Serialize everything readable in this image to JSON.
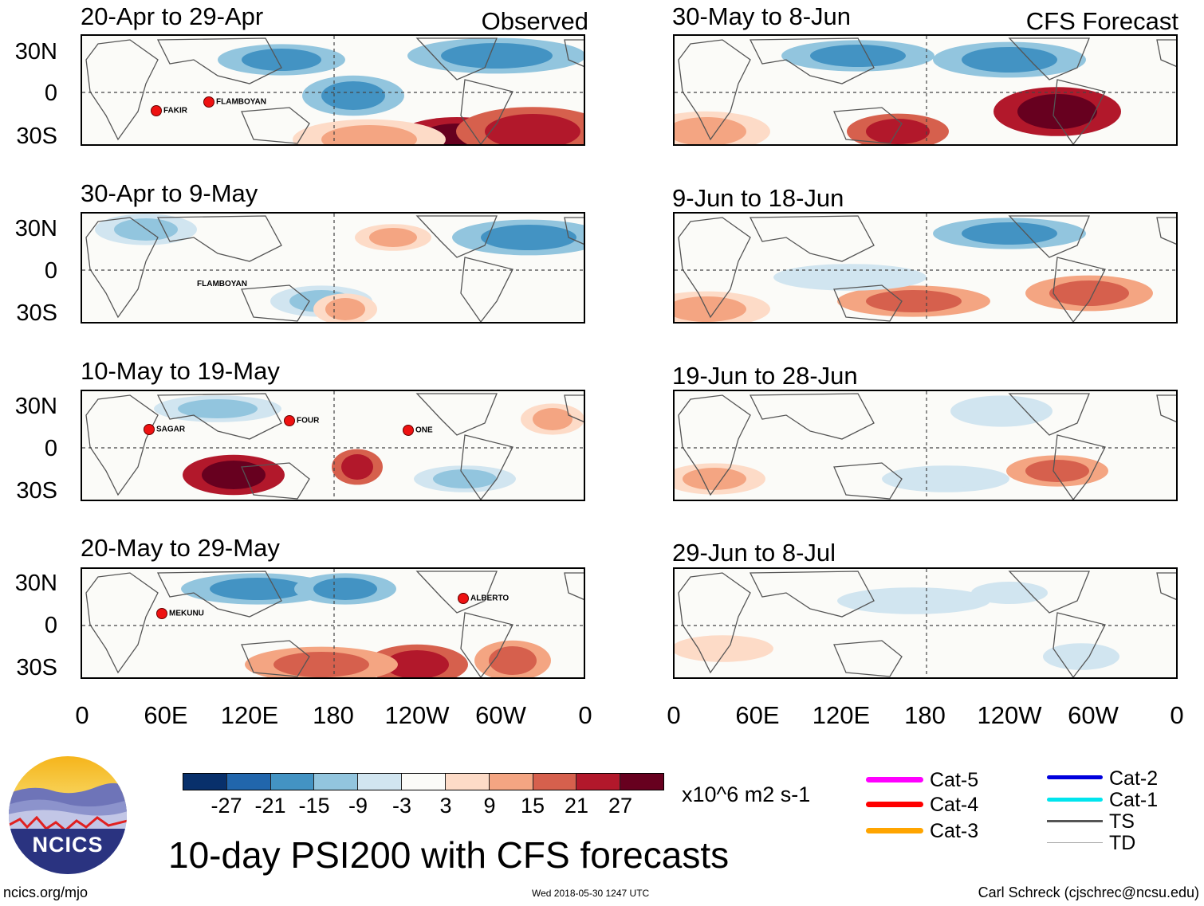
{
  "panels_left": [
    {
      "period": "20-Apr to 29-Apr",
      "tag": "Observed",
      "storms": [
        {
          "name": "FAKIR"
        },
        {
          "name": "FLAMBOYAN"
        }
      ]
    },
    {
      "period": "30-Apr to 9-May",
      "tag": "",
      "storms": [
        {
          "name": "FLAMBOYAN"
        }
      ]
    },
    {
      "period": "10-May to 19-May",
      "tag": "",
      "storms": [
        {
          "name": "SAGAR"
        },
        {
          "name": "FOUR"
        },
        {
          "name": "ONE"
        }
      ]
    },
    {
      "period": "20-May to 29-May",
      "tag": "",
      "storms": [
        {
          "name": "MEKUNU"
        },
        {
          "name": "ALBERTO"
        }
      ]
    }
  ],
  "panels_right": [
    {
      "period": "30-May to 8-Jun",
      "tag": "CFS Forecast"
    },
    {
      "period": "9-Jun to 18-Jun",
      "tag": ""
    },
    {
      "period": "19-Jun to 28-Jun",
      "tag": ""
    },
    {
      "period": "29-Jun to 8-Jul",
      "tag": ""
    }
  ],
  "lat_labels": [
    "30N",
    "0",
    "30S"
  ],
  "lon_labels": [
    "0",
    "60E",
    "120E",
    "180",
    "120W",
    "60W",
    "0"
  ],
  "colorbar": {
    "labels": [
      "-27",
      "-21",
      "-15",
      "-9",
      "-3",
      "3",
      "9",
      "15",
      "21",
      "27"
    ],
    "units": "x10^6 m2 s-1",
    "colors": [
      "#08306b",
      "#2166ac",
      "#4393c3",
      "#92c5de",
      "#d1e5f0",
      "#fbfbf8",
      "#fddbc7",
      "#f4a582",
      "#d6604d",
      "#b2182b",
      "#67001f"
    ]
  },
  "legend": {
    "left": [
      {
        "label": "Cat-5",
        "color": "#ff00ff"
      },
      {
        "label": "Cat-4",
        "color": "#ff0000"
      },
      {
        "label": "Cat-3",
        "color": "#ffa500"
      }
    ],
    "right": [
      {
        "label": "Cat-2",
        "color": "#0000dd"
      },
      {
        "label": "Cat-1",
        "color": "#00e5ee"
      },
      {
        "label": "TS",
        "color": "#555555"
      },
      {
        "label": "TD",
        "color": "#aaaaaa"
      }
    ]
  },
  "logo_text": "NCICS",
  "main_title": "10-day PSI200 with CFS forecasts",
  "footer": {
    "left": "ncics.org/mjo",
    "center": "Wed 2018-05-30 1247 UTC",
    "right": "Carl Schreck (cjschrec@ncsu.edu)"
  }
}
